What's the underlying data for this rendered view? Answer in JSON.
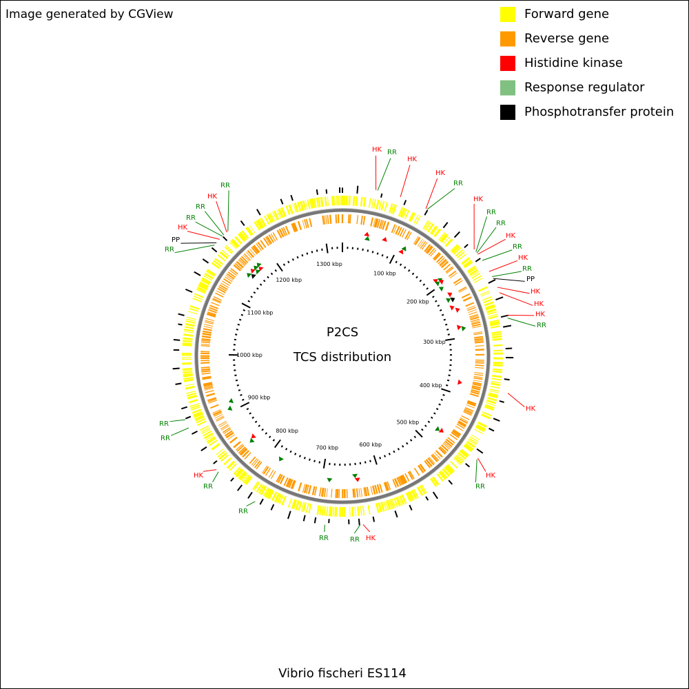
{
  "header": {
    "credit": "Image generated by CGView"
  },
  "legend": [
    {
      "label": "Forward gene",
      "color": "#ffff00"
    },
    {
      "label": "Reverse gene",
      "color": "#ff9900"
    },
    {
      "label": "Histidine kinase",
      "color": "#ff0000"
    },
    {
      "label": "Response regulator",
      "color": "#80c080"
    },
    {
      "label": "Phosphotransfer protein",
      "color": "#000000"
    }
  ],
  "center": {
    "title": "P2CS",
    "subtitle": "TCS distribution"
  },
  "footer": "Vibrio fischeri ES114",
  "scale_labels": [
    "100 kbp",
    "200 kbp",
    "300 kbp",
    "400 kbp",
    "500 kbp",
    "600 kbp",
    "700 kbp",
    "800 kbp",
    "900 kbp",
    "1000 kbp",
    "1100 kbp",
    "1200 kbp",
    "1300 kbp"
  ],
  "features": [
    {
      "label": "HK",
      "color": "#ff0000"
    },
    {
      "label": "RR",
      "color": "#008000"
    },
    {
      "label": "HK",
      "color": "#ff0000"
    },
    {
      "label": "HK",
      "color": "#ff0000"
    },
    {
      "label": "RR",
      "color": "#008000"
    },
    {
      "label": "HK",
      "color": "#ff0000"
    },
    {
      "label": "RR",
      "color": "#008000"
    },
    {
      "label": "RR",
      "color": "#008000"
    },
    {
      "label": "HK",
      "color": "#ff0000"
    },
    {
      "label": "RR",
      "color": "#008000"
    },
    {
      "label": "HK",
      "color": "#ff0000"
    },
    {
      "label": "RR",
      "color": "#008000"
    },
    {
      "label": "PP",
      "color": "#000000"
    },
    {
      "label": "HK",
      "color": "#ff0000"
    },
    {
      "label": "HK",
      "color": "#ff0000"
    },
    {
      "label": "HK",
      "color": "#ff0000"
    },
    {
      "label": "RR",
      "color": "#008000"
    },
    {
      "label": "HK",
      "color": "#ff0000"
    },
    {
      "label": "HK",
      "color": "#ff0000"
    },
    {
      "label": "RR",
      "color": "#008000"
    },
    {
      "label": "HK",
      "color": "#ff0000"
    },
    {
      "label": "RR",
      "color": "#008000"
    },
    {
      "label": "RR",
      "color": "#008000"
    },
    {
      "label": "RR",
      "color": "#008000"
    },
    {
      "label": "RR",
      "color": "#008000"
    },
    {
      "label": "HK",
      "color": "#ff0000"
    },
    {
      "label": "RR",
      "color": "#008000"
    },
    {
      "label": "RR",
      "color": "#008000"
    },
    {
      "label": "RR",
      "color": "#008000"
    },
    {
      "label": "PP",
      "color": "#000000"
    },
    {
      "label": "HK",
      "color": "#ff0000"
    },
    {
      "label": "RR",
      "color": "#008000"
    },
    {
      "label": "RR",
      "color": "#008000"
    },
    {
      "label": "HK",
      "color": "#ff0000"
    },
    {
      "label": "RR",
      "color": "#008000"
    }
  ]
}
